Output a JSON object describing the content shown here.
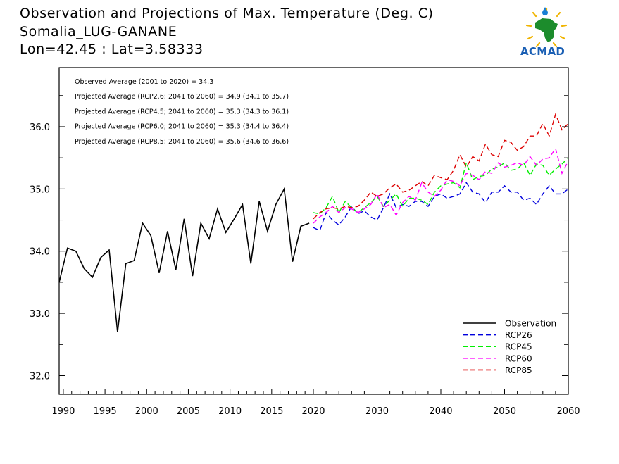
{
  "header": {
    "title": "Observation and Projections of Max. Temperature (Deg. C)",
    "station": "Somalia_LUG-GANANE",
    "coords": "Lon=42.45 : Lat=3.58333"
  },
  "logo": {
    "text": "ACMAD"
  },
  "colors": {
    "observation": "#000000",
    "rcp26": "#0000dd",
    "rcp45": "#00ee00",
    "rcp60": "#ff00ff",
    "rcp85": "#dd0000"
  },
  "chart_data": {
    "type": "line",
    "x_ticks_left": [
      1990,
      1995,
      2000,
      2005,
      2010,
      2015,
      2020
    ],
    "x_ticks_right": [
      2020,
      2030,
      2040,
      2050,
      2060
    ],
    "xlim_left": [
      1989.5,
      2020
    ],
    "xlim_right": [
      2020,
      2060
    ],
    "y_ticks": [
      "32.0",
      "33.0",
      "34.0",
      "35.0",
      "36.0"
    ],
    "ylim": [
      31.7,
      36.95
    ],
    "grid": false,
    "legend_position": "bottom-right",
    "annotations": [
      "Observed Average (2001 to 2020) = 34.3",
      "Projected Average (RCP2.6; 2041 to 2060) = 34.9 (34.1 to 35.7)",
      "Projected Average (RCP4.5; 2041 to 2060) = 35.3 (34.3 to 36.1)",
      "Projected Average (RCP6.0; 2041 to 2060) = 35.3 (34.4 to 36.4)",
      "Projected Average (RCP8.5; 2041 to 2060) = 35.6 (34.6 to 36.6)"
    ],
    "series": [
      {
        "name": "Observation",
        "color": "#000000",
        "dash": false,
        "x": [
          1989.5,
          1990.5,
          1991.5,
          1992.5,
          1993.5,
          1994.5,
          1995.5,
          1996.5,
          1997.5,
          1998.5,
          1999.5,
          2000.5,
          2001.5,
          2002.5,
          2003.5,
          2004.5,
          2005.5,
          2006.5,
          2007.5,
          2008.5,
          2009.5,
          2010.5,
          2011.5,
          2012.5,
          2013.5,
          2014.5,
          2015.5,
          2016.5,
          2017.5,
          2018.5,
          2019.5
        ],
        "values": [
          33.5,
          34.05,
          34.0,
          33.72,
          33.58,
          33.9,
          34.02,
          32.7,
          33.8,
          33.85,
          34.45,
          34.25,
          33.65,
          34.32,
          33.7,
          34.52,
          33.6,
          34.45,
          34.2,
          34.68,
          34.3,
          34.52,
          34.75,
          33.8,
          34.8,
          34.32,
          34.75,
          35.0,
          33.83,
          34.4,
          34.45
        ]
      },
      {
        "name": "RCP26",
        "color": "#0000dd",
        "dash": true,
        "x": [
          2020,
          2021,
          2022,
          2023,
          2024,
          2025,
          2026,
          2027,
          2028,
          2029,
          2030,
          2031,
          2032,
          2033,
          2034,
          2035,
          2036,
          2037,
          2038,
          2039,
          2040,
          2041,
          2042,
          2043,
          2044,
          2045,
          2046,
          2047,
          2048,
          2049,
          2050,
          2051,
          2052,
          2053,
          2054,
          2055,
          2056,
          2057,
          2058,
          2059,
          2060
        ],
        "values": [
          34.38,
          34.33,
          34.62,
          34.5,
          34.42,
          34.55,
          34.72,
          34.6,
          34.65,
          34.55,
          34.5,
          34.7,
          34.92,
          34.7,
          34.75,
          34.72,
          34.8,
          34.8,
          34.72,
          34.88,
          34.92,
          34.85,
          34.88,
          34.92,
          35.1,
          34.95,
          34.92,
          34.78,
          34.95,
          34.95,
          35.05,
          34.95,
          34.95,
          34.82,
          34.85,
          34.75,
          34.92,
          35.05,
          34.92,
          34.92,
          35.0
        ]
      },
      {
        "name": "RCP45",
        "color": "#00ee00",
        "dash": true,
        "x": [
          2020,
          2021,
          2022,
          2023,
          2024,
          2025,
          2026,
          2027,
          2028,
          2029,
          2030,
          2031,
          2032,
          2033,
          2034,
          2035,
          2036,
          2037,
          2038,
          2039,
          2040,
          2041,
          2042,
          2043,
          2044,
          2045,
          2046,
          2047,
          2048,
          2049,
          2050,
          2051,
          2052,
          2053,
          2054,
          2055,
          2056,
          2057,
          2058,
          2059,
          2060
        ],
        "values": [
          34.62,
          34.6,
          34.7,
          34.88,
          34.62,
          34.8,
          34.7,
          34.62,
          34.7,
          34.78,
          34.88,
          34.72,
          34.82,
          34.92,
          34.72,
          34.85,
          34.85,
          34.82,
          34.75,
          34.95,
          35.05,
          35.08,
          35.1,
          35.02,
          35.42,
          35.15,
          35.2,
          35.22,
          35.32,
          35.35,
          35.42,
          35.3,
          35.32,
          35.42,
          35.22,
          35.4,
          35.38,
          35.22,
          35.32,
          35.4,
          35.5
        ]
      },
      {
        "name": "RCP60",
        "color": "#ff00ff",
        "dash": true,
        "x": [
          2020,
          2021,
          2022,
          2023,
          2024,
          2025,
          2026,
          2027,
          2028,
          2029,
          2030,
          2031,
          2032,
          2033,
          2034,
          2035,
          2036,
          2037,
          2038,
          2039,
          2040,
          2041,
          2042,
          2043,
          2044,
          2045,
          2046,
          2047,
          2048,
          2049,
          2050,
          2051,
          2052,
          2053,
          2054,
          2055,
          2056,
          2057,
          2058,
          2059,
          2060
        ],
        "values": [
          34.45,
          34.55,
          34.62,
          34.72,
          34.62,
          34.7,
          34.68,
          34.62,
          34.68,
          34.75,
          34.92,
          34.7,
          34.75,
          34.58,
          34.78,
          34.88,
          34.82,
          35.1,
          34.95,
          34.88,
          34.98,
          35.15,
          35.12,
          35.05,
          35.25,
          35.22,
          35.15,
          35.28,
          35.25,
          35.42,
          35.35,
          35.38,
          35.42,
          35.38,
          35.52,
          35.38,
          35.48,
          35.5,
          35.65,
          35.25,
          35.45
        ]
      },
      {
        "name": "RCP85",
        "color": "#dd0000",
        "dash": true,
        "x": [
          2020,
          2021,
          2022,
          2023,
          2024,
          2025,
          2026,
          2027,
          2028,
          2029,
          2030,
          2031,
          2032,
          2033,
          2034,
          2035,
          2036,
          2037,
          2038,
          2039,
          2040,
          2041,
          2042,
          2043,
          2044,
          2045,
          2046,
          2047,
          2048,
          2049,
          2050,
          2051,
          2052,
          2053,
          2054,
          2055,
          2056,
          2057,
          2058,
          2059,
          2060
        ],
        "values": [
          34.52,
          34.62,
          34.68,
          34.7,
          34.68,
          34.72,
          34.7,
          34.72,
          34.82,
          34.95,
          34.88,
          34.92,
          35.02,
          35.08,
          34.95,
          34.98,
          35.05,
          35.12,
          35.05,
          35.22,
          35.18,
          35.15,
          35.3,
          35.55,
          35.35,
          35.52,
          35.45,
          35.72,
          35.55,
          35.52,
          35.78,
          35.75,
          35.62,
          35.68,
          35.85,
          35.85,
          36.05,
          35.85,
          36.2,
          35.95,
          36.05
        ]
      }
    ]
  }
}
